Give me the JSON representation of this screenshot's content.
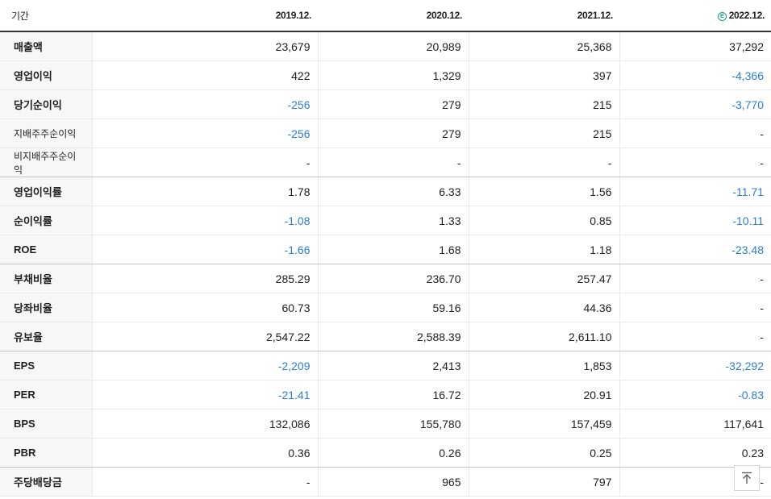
{
  "header": {
    "label": "기간",
    "periods": [
      "2019.12.",
      "2020.12.",
      "2021.12.",
      "2022.12."
    ],
    "estimate_badge": "E"
  },
  "rows": [
    {
      "label": "매출액",
      "sub": false,
      "values": [
        "23,679",
        "20,989",
        "25,368",
        "37,292"
      ]
    },
    {
      "label": "영업이익",
      "sub": false,
      "values": [
        "422",
        "1,329",
        "397",
        "-4,366"
      ]
    },
    {
      "label": "당기순이익",
      "sub": false,
      "values": [
        "-256",
        "279",
        "215",
        "-3,770"
      ]
    },
    {
      "label": "지배주주순이익",
      "sub": true,
      "values": [
        "-256",
        "279",
        "215",
        "-"
      ]
    },
    {
      "label": "비지배주주순이익",
      "sub": true,
      "values": [
        "-",
        "-",
        "-",
        "-"
      ]
    },
    {
      "label": "영업이익률",
      "sub": false,
      "values": [
        "1.78",
        "6.33",
        "1.56",
        "-11.71"
      ]
    },
    {
      "label": "순이익률",
      "sub": false,
      "values": [
        "-1.08",
        "1.33",
        "0.85",
        "-10.11"
      ]
    },
    {
      "label": "ROE",
      "sub": false,
      "values": [
        "-1.66",
        "1.68",
        "1.18",
        "-23.48"
      ]
    },
    {
      "label": "부채비율",
      "sub": false,
      "values": [
        "285.29",
        "236.70",
        "257.47",
        "-"
      ]
    },
    {
      "label": "당좌비율",
      "sub": false,
      "values": [
        "60.73",
        "59.16",
        "44.36",
        "-"
      ]
    },
    {
      "label": "유보율",
      "sub": false,
      "values": [
        "2,547.22",
        "2,588.39",
        "2,611.10",
        "-"
      ]
    },
    {
      "label": "EPS",
      "sub": false,
      "values": [
        "-2,209",
        "2,413",
        "1,853",
        "-32,292"
      ]
    },
    {
      "label": "PER",
      "sub": false,
      "values": [
        "-21.41",
        "16.72",
        "20.91",
        "-0.83"
      ]
    },
    {
      "label": "BPS",
      "sub": false,
      "values": [
        "132,086",
        "155,780",
        "157,459",
        "117,641"
      ]
    },
    {
      "label": "PBR",
      "sub": false,
      "values": [
        "0.36",
        "0.26",
        "0.25",
        "0.23"
      ]
    },
    {
      "label": "주당배당금",
      "sub": false,
      "values": [
        "-",
        "965",
        "797",
        "-"
      ]
    }
  ],
  "group_end_rows": [
    4,
    7,
    10,
    14
  ],
  "colors": {
    "negative": "#2b7fd6",
    "estimate": "#16a085"
  },
  "scroll_top_icon": "arrow-up-to-top-icon"
}
